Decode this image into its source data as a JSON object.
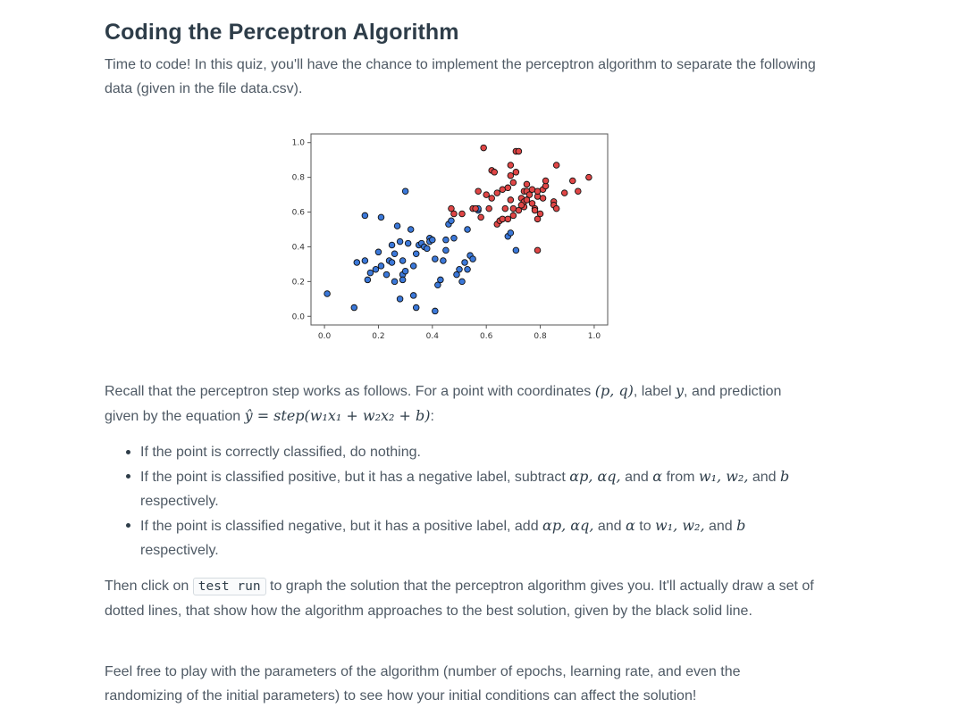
{
  "title": "Coding the Perceptron Algorithm",
  "intro": "Time to code! In this quiz, you'll have the chance to implement the perceptron algorithm to separate the following data (given in the file data.csv).",
  "recall": {
    "part1": "Recall that the perceptron step works as follows. For a point with coordinates ",
    "m1": "(p, q)",
    "part2": ", label ",
    "m2": "y",
    "part3": ", and prediction given by the equation ",
    "m3": "ŷ = step(w₁x₁ + w₂x₂ + b)",
    "part4": ":"
  },
  "bullets": {
    "b1": "If the point is correctly classified, do nothing.",
    "b2_a": "If the point is classified positive, but it has a negative label, subtract ",
    "b2_m1": "αp, αq,",
    "b2_b": " and ",
    "b2_m2": "α",
    "b2_c": " from ",
    "b2_m3": "w₁, w₂,",
    "b2_d": " and ",
    "b2_m4": "b",
    "b2_e": " respectively.",
    "b3_a": "If the point is classified negative, but it has a positive label, add ",
    "b3_m1": "αp, αq,",
    "b3_b": " and ",
    "b3_m2": "α",
    "b3_c": " to ",
    "b3_m3": "w₁, w₂,",
    "b3_d": " and ",
    "b3_m4": "b",
    "b3_e": " respectively."
  },
  "then": {
    "a": "Then click on ",
    "code": "test run",
    "b": " to graph the solution that the perceptron algorithm gives you. It'll actually draw a set of dotted lines, that show how the algorithm approaches to the best solution, given by the black solid line."
  },
  "feel": "Feel free to play with the parameters of the algorithm (number of epochs, learning rate, and even the randomizing of the initial parameters) to see how your initial conditions can affect the solution!",
  "chart_data": {
    "type": "scatter",
    "xlim": [
      -0.05,
      1.05
    ],
    "ylim": [
      -0.05,
      1.05
    ],
    "xticks": [
      "0.0",
      "0.2",
      "0.4",
      "0.6",
      "0.8",
      "1.0"
    ],
    "yticks": [
      "0.0",
      "0.2",
      "0.4",
      "0.6",
      "0.8",
      "1.0"
    ],
    "grid": false,
    "colors": {
      "blue": "#3b78d9",
      "red": "#e04646",
      "edge": "#111111",
      "frame": "#555555"
    },
    "series": [
      {
        "color": "blue",
        "points": [
          [
            0.01,
            0.13
          ],
          [
            0.11,
            0.05
          ],
          [
            0.12,
            0.31
          ],
          [
            0.15,
            0.32
          ],
          [
            0.16,
            0.21
          ],
          [
            0.17,
            0.25
          ],
          [
            0.15,
            0.58
          ],
          [
            0.21,
            0.57
          ],
          [
            0.19,
            0.27
          ],
          [
            0.2,
            0.37
          ],
          [
            0.21,
            0.29
          ],
          [
            0.23,
            0.24
          ],
          [
            0.24,
            0.32
          ],
          [
            0.25,
            0.31
          ],
          [
            0.25,
            0.41
          ],
          [
            0.26,
            0.2
          ],
          [
            0.26,
            0.36
          ],
          [
            0.27,
            0.52
          ],
          [
            0.28,
            0.43
          ],
          [
            0.28,
            0.1
          ],
          [
            0.29,
            0.32
          ],
          [
            0.29,
            0.24
          ],
          [
            0.29,
            0.21
          ],
          [
            0.3,
            0.26
          ],
          [
            0.3,
            0.72
          ],
          [
            0.31,
            0.42
          ],
          [
            0.32,
            0.5
          ],
          [
            0.33,
            0.29
          ],
          [
            0.33,
            0.12
          ],
          [
            0.34,
            0.05
          ],
          [
            0.34,
            0.36
          ],
          [
            0.35,
            0.41
          ],
          [
            0.36,
            0.42
          ],
          [
            0.37,
            0.4
          ],
          [
            0.38,
            0.39
          ],
          [
            0.39,
            0.45
          ],
          [
            0.39,
            0.43
          ],
          [
            0.4,
            0.44
          ],
          [
            0.41,
            0.03
          ],
          [
            0.41,
            0.33
          ],
          [
            0.42,
            0.18
          ],
          [
            0.43,
            0.21
          ],
          [
            0.44,
            0.32
          ],
          [
            0.45,
            0.44
          ],
          [
            0.45,
            0.38
          ],
          [
            0.46,
            0.53
          ],
          [
            0.47,
            0.55
          ],
          [
            0.48,
            0.45
          ],
          [
            0.49,
            0.24
          ],
          [
            0.5,
            0.27
          ],
          [
            0.51,
            0.2
          ],
          [
            0.52,
            0.31
          ],
          [
            0.53,
            0.27
          ],
          [
            0.54,
            0.35
          ],
          [
            0.55,
            0.33
          ],
          [
            0.57,
            0.61
          ],
          [
            0.57,
            0.62
          ],
          [
            0.68,
            0.46
          ],
          [
            0.69,
            0.48
          ],
          [
            0.71,
            0.38
          ],
          [
            0.53,
            0.5
          ]
        ]
      },
      {
        "color": "red",
        "points": [
          [
            0.47,
            0.62
          ],
          [
            0.48,
            0.59
          ],
          [
            0.51,
            0.59
          ],
          [
            0.55,
            0.62
          ],
          [
            0.56,
            0.62
          ],
          [
            0.57,
            0.72
          ],
          [
            0.58,
            0.57
          ],
          [
            0.59,
            0.97
          ],
          [
            0.6,
            0.7
          ],
          [
            0.61,
            0.62
          ],
          [
            0.62,
            0.68
          ],
          [
            0.62,
            0.84
          ],
          [
            0.63,
            0.83
          ],
          [
            0.64,
            0.71
          ],
          [
            0.64,
            0.53
          ],
          [
            0.65,
            0.55
          ],
          [
            0.66,
            0.73
          ],
          [
            0.66,
            0.56
          ],
          [
            0.67,
            0.62
          ],
          [
            0.68,
            0.74
          ],
          [
            0.68,
            0.56
          ],
          [
            0.69,
            0.81
          ],
          [
            0.69,
            0.87
          ],
          [
            0.69,
            0.67
          ],
          [
            0.7,
            0.77
          ],
          [
            0.7,
            0.62
          ],
          [
            0.71,
            0.83
          ],
          [
            0.71,
            0.95
          ],
          [
            0.72,
            0.95
          ],
          [
            0.72,
            0.61
          ],
          [
            0.73,
            0.68
          ],
          [
            0.74,
            0.63
          ],
          [
            0.74,
            0.72
          ],
          [
            0.74,
            0.66
          ],
          [
            0.75,
            0.72
          ],
          [
            0.75,
            0.76
          ],
          [
            0.76,
            0.7
          ],
          [
            0.77,
            0.65
          ],
          [
            0.77,
            0.73
          ],
          [
            0.78,
            0.62
          ],
          [
            0.79,
            0.56
          ],
          [
            0.79,
            0.69
          ],
          [
            0.79,
            0.72
          ],
          [
            0.8,
            0.59
          ],
          [
            0.81,
            0.68
          ],
          [
            0.81,
            0.73
          ],
          [
            0.82,
            0.75
          ],
          [
            0.82,
            0.78
          ],
          [
            0.73,
            0.64
          ],
          [
            0.75,
            0.67
          ],
          [
            0.78,
            0.61
          ],
          [
            0.79,
            0.38
          ],
          [
            0.85,
            0.66
          ],
          [
            0.85,
            0.64
          ],
          [
            0.86,
            0.87
          ],
          [
            0.86,
            0.62
          ],
          [
            0.89,
            0.71
          ],
          [
            0.92,
            0.78
          ],
          [
            0.94,
            0.72
          ],
          [
            0.98,
            0.8
          ],
          [
            0.7,
            0.58
          ]
        ]
      }
    ]
  }
}
